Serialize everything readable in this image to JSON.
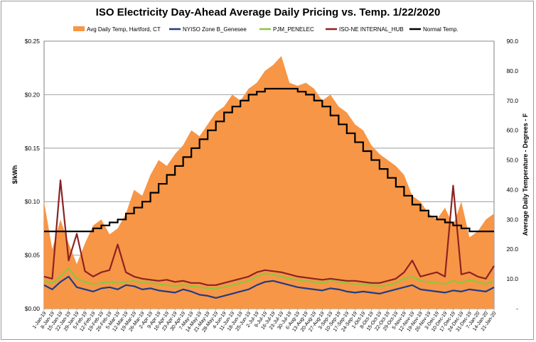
{
  "chart_data": {
    "type": "line",
    "title": "ISO Electricity Day-Ahead Average Daily Pricing vs. Temp. 1/22/2020",
    "ylabel": "$/kWh",
    "y2label": "Average Daily Temperature - Degrees - F",
    "ylim": [
      0,
      0.25
    ],
    "y2lim": [
      0,
      90
    ],
    "yticks": [
      "$0.00",
      "$0.05",
      "$0.10",
      "$0.15",
      "$0.20",
      "$0.25"
    ],
    "y2ticks": [
      "-",
      "10.0",
      "20.0",
      "30.0",
      "40.0",
      "50.0",
      "60.0",
      "70.0",
      "80.0",
      "90.0"
    ],
    "grid": true,
    "legend_position": "top",
    "x_categories": [
      "1-Jan-19",
      "8-Jan-19",
      "15-Jan-19",
      "22-Jan-19",
      "29-Jan-19",
      "5-Feb-19",
      "12-Feb-19",
      "19-Feb-19",
      "26-Feb-19",
      "5-Mar-19",
      "12-Mar-19",
      "19-Mar-19",
      "26-Mar-19",
      "2-Apr-19",
      "9-Apr-19",
      "16-Apr-19",
      "23-Apr-19",
      "30-Apr-19",
      "7-May-19",
      "14-May-19",
      "21-May-19",
      "28-May-19",
      "4-Jun-19",
      "11-Jun-19",
      "18-Jun-19",
      "25-Jun-19",
      "2-Jul-19",
      "9-Jul-19",
      "16-Jul-19",
      "23-Jul-19",
      "30-Jul-19",
      "6-Aug-19",
      "13-Aug-19",
      "20-Aug-19",
      "27-Aug-19",
      "3-Sep-19",
      "10-Sep-19",
      "17-Sep-19",
      "24-Sep-19",
      "1-Oct-19",
      "8-Oct-19",
      "15-Oct-19",
      "22-Oct-19",
      "29-Oct-19",
      "5-Nov-19",
      "12-Nov-19",
      "19-Nov-19",
      "26-Nov-19",
      "3-Dec-19",
      "10-Dec-19",
      "17-Dec-19",
      "24-Dec-19",
      "31-Dec-19",
      "7-Jan-20",
      "14-Jan-20",
      "21-Jan-20"
    ],
    "series": [
      {
        "name": "Avg Daily Temp, Hartford, CT",
        "axis": "y2",
        "kind": "area",
        "color": "#f79646",
        "values": [
          36,
          20,
          30,
          22,
          15,
          22,
          28,
          30,
          25,
          27,
          32,
          40,
          38,
          45,
          50,
          48,
          52,
          55,
          60,
          58,
          62,
          66,
          68,
          72,
          70,
          74,
          76,
          80,
          82,
          85,
          76,
          75,
          76,
          74,
          70,
          72,
          68,
          66,
          62,
          60,
          55,
          52,
          50,
          48,
          45,
          38,
          36,
          32,
          30,
          34,
          28,
          36,
          24,
          26,
          30,
          32
        ]
      },
      {
        "name": "NYISO Zone B_Genesee",
        "axis": "y",
        "kind": "line",
        "color": "#1f3c88",
        "values": [
          0.022,
          0.018,
          0.025,
          0.03,
          0.02,
          0.018,
          0.016,
          0.019,
          0.02,
          0.018,
          0.022,
          0.021,
          0.018,
          0.019,
          0.017,
          0.016,
          0.015,
          0.018,
          0.016,
          0.013,
          0.012,
          0.01,
          0.012,
          0.014,
          0.016,
          0.018,
          0.022,
          0.025,
          0.026,
          0.024,
          0.022,
          0.02,
          0.019,
          0.018,
          0.017,
          0.019,
          0.018,
          0.016,
          0.015,
          0.016,
          0.015,
          0.014,
          0.016,
          0.018,
          0.02,
          0.022,
          0.018,
          0.017,
          0.016,
          0.015,
          0.017,
          0.016,
          0.018,
          0.017,
          0.016,
          0.02
        ]
      },
      {
        "name": "PJM_PENELEC",
        "axis": "y",
        "kind": "line",
        "color": "#8dc63f",
        "values": [
          0.026,
          0.024,
          0.03,
          0.038,
          0.028,
          0.025,
          0.023,
          0.024,
          0.025,
          0.024,
          0.025,
          0.026,
          0.024,
          0.024,
          0.023,
          0.022,
          0.021,
          0.022,
          0.021,
          0.02,
          0.019,
          0.019,
          0.02,
          0.022,
          0.024,
          0.026,
          0.03,
          0.033,
          0.032,
          0.03,
          0.028,
          0.027,
          0.026,
          0.025,
          0.024,
          0.026,
          0.025,
          0.024,
          0.023,
          0.023,
          0.022,
          0.021,
          0.022,
          0.024,
          0.028,
          0.03,
          0.026,
          0.025,
          0.024,
          0.023,
          0.026,
          0.024,
          0.027,
          0.025,
          0.023,
          0.026
        ]
      },
      {
        "name": "ISO-NE INTERNAL_HUB",
        "axis": "y",
        "kind": "line",
        "color": "#8b2323",
        "values": [
          0.03,
          0.028,
          0.12,
          0.045,
          0.07,
          0.035,
          0.03,
          0.034,
          0.036,
          0.06,
          0.034,
          0.03,
          0.028,
          0.027,
          0.026,
          0.027,
          0.025,
          0.026,
          0.024,
          0.024,
          0.022,
          0.022,
          0.024,
          0.026,
          0.028,
          0.03,
          0.034,
          0.036,
          0.035,
          0.034,
          0.032,
          0.03,
          0.029,
          0.028,
          0.027,
          0.028,
          0.027,
          0.026,
          0.026,
          0.025,
          0.024,
          0.024,
          0.026,
          0.028,
          0.034,
          0.045,
          0.03,
          0.032,
          0.034,
          0.03,
          0.115,
          0.032,
          0.034,
          0.03,
          0.028,
          0.04
        ]
      },
      {
        "name": "Normal Temp.",
        "axis": "y2",
        "kind": "step",
        "color": "#000000",
        "values": [
          26,
          26,
          26,
          26,
          26,
          26,
          27,
          28,
          29,
          30,
          32,
          34,
          36,
          39,
          42,
          45,
          48,
          51,
          54,
          57,
          60,
          63,
          66,
          68,
          70,
          72,
          73,
          74,
          74,
          74,
          74,
          73,
          72,
          70,
          68,
          65,
          62,
          59,
          56,
          53,
          50,
          47,
          44,
          41,
          38,
          35,
          33,
          31,
          30,
          29,
          28,
          27,
          26,
          26,
          26,
          26
        ]
      }
    ]
  }
}
